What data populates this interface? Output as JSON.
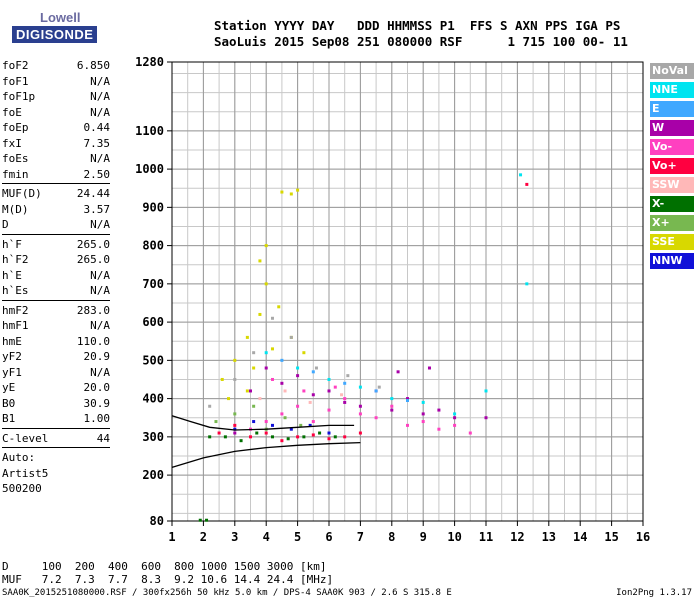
{
  "logo": {
    "line1": "Lowell",
    "line2": "DIGISONDE"
  },
  "header": {
    "line1": "Station YYYY DAY   DDD HHMMSS P1  FFS S AXN PPS IGA PS",
    "line2": "SaoLuis 2015 Sep08 251 080000 RSF      1 715 100 00- 11"
  },
  "params": [
    {
      "label": "foF2",
      "value": "6.850"
    },
    {
      "label": "foF1",
      "value": "N/A"
    },
    {
      "label": "foF1p",
      "value": "N/A"
    },
    {
      "label": "foE",
      "value": "N/A"
    },
    {
      "label": "foEp",
      "value": "0.44"
    },
    {
      "label": "fxI",
      "value": "7.35"
    },
    {
      "label": "foEs",
      "value": "N/A"
    },
    {
      "label": "fmin",
      "value": "2.50"
    },
    {
      "sep": true
    },
    {
      "label": "MUF(D)",
      "value": "24.44"
    },
    {
      "label": "M(D)",
      "value": "3.57"
    },
    {
      "label": "D",
      "value": "N/A"
    },
    {
      "sep": true
    },
    {
      "label": "h`F",
      "value": "265.0"
    },
    {
      "label": "h`F2",
      "value": "265.0"
    },
    {
      "label": "h`E",
      "value": "N/A"
    },
    {
      "label": "h`Es",
      "value": "N/A"
    },
    {
      "sep": true
    },
    {
      "label": "hmF2",
      "value": "283.0"
    },
    {
      "label": "hmF1",
      "value": "N/A"
    },
    {
      "label": "hmE",
      "value": "110.0"
    },
    {
      "label": "yF2",
      "value": "20.9"
    },
    {
      "label": "yF1",
      "value": "N/A"
    },
    {
      "label": "yE",
      "value": "20.0"
    },
    {
      "label": "B0",
      "value": "30.9"
    },
    {
      "label": "B1",
      "value": "1.00"
    },
    {
      "sep": true
    },
    {
      "label": "C-level",
      "value": "44"
    },
    {
      "sep": true
    },
    {
      "text": "Auto:"
    },
    {
      "text": "Artist5"
    },
    {
      "text": "500200"
    }
  ],
  "legend": [
    {
      "label": "NoVal",
      "color": "#a8a8a8"
    },
    {
      "label": "NNE",
      "color": "#00e4f0"
    },
    {
      "label": "E",
      "color": "#40a8ff"
    },
    {
      "label": "W",
      "color": "#a800a8"
    },
    {
      "label": "Vo-",
      "color": "#ff40c0"
    },
    {
      "label": "Vo+",
      "color": "#ff0040"
    },
    {
      "label": "SSW",
      "color": "#ffb8b8"
    },
    {
      "label": "X-",
      "color": "#007000"
    },
    {
      "label": "X+",
      "color": "#78b850"
    },
    {
      "label": "SSE",
      "color": "#d8d800"
    },
    {
      "label": "NNW",
      "color": "#1010d8"
    }
  ],
  "footer": {
    "line1": "D     100  200  400  600  800 1000 1500 3000 [km]",
    "line2": "MUF   7.2  7.3  7.7  8.3  9.2 10.6 14.4 24.4 [MHz]",
    "line3": "SAA0K_2015251080000.RSF / 300fx256h 50 kHz 5.0 km / DPS-4 SAA0K 903 / 2.6 S 315.8 E",
    "version": "Ion2Png 1.3.17"
  },
  "chart_data": {
    "type": "scatter",
    "x_ticks": [
      "1",
      "2",
      "3",
      "4",
      "5",
      "6",
      "7",
      "8",
      "9",
      "10",
      "11",
      "12",
      "13",
      "14",
      "15",
      "16"
    ],
    "y_ticks": [
      "80",
      "200",
      "300",
      "400",
      "500",
      "600",
      "700",
      "800",
      "900",
      "1000",
      "1100",
      "1280"
    ],
    "xlim": [
      1,
      16
    ],
    "ylim": [
      80,
      1280
    ],
    "grid": true,
    "legend_position": "right",
    "series": [
      {
        "name": "Vo-",
        "points": [
          [
            3.5,
            320
          ],
          [
            4.0,
            340
          ],
          [
            4.5,
            360
          ],
          [
            5.0,
            380
          ],
          [
            5.5,
            340
          ],
          [
            6.0,
            370
          ],
          [
            6.5,
            400
          ],
          [
            7.0,
            360
          ],
          [
            7.5,
            350
          ],
          [
            8.0,
            380
          ],
          [
            8.5,
            330
          ],
          [
            9.0,
            340
          ],
          [
            9.5,
            320
          ],
          [
            10.0,
            330
          ],
          [
            10.5,
            310
          ],
          [
            4.2,
            450
          ],
          [
            5.2,
            420
          ],
          [
            6.2,
            430
          ]
        ]
      },
      {
        "name": "W",
        "points": [
          [
            3.0,
            310
          ],
          [
            3.5,
            420
          ],
          [
            4.0,
            480
          ],
          [
            4.5,
            440
          ],
          [
            5.0,
            460
          ],
          [
            5.5,
            410
          ],
          [
            6.0,
            420
          ],
          [
            6.5,
            390
          ],
          [
            7.0,
            380
          ],
          [
            7.5,
            420
          ],
          [
            8.0,
            370
          ],
          [
            8.5,
            400
          ],
          [
            9.0,
            360
          ],
          [
            9.5,
            370
          ],
          [
            10.0,
            350
          ],
          [
            11.0,
            350
          ],
          [
            9.2,
            480
          ],
          [
            8.2,
            470
          ]
        ]
      },
      {
        "name": "Vo+",
        "points": [
          [
            2.5,
            310
          ],
          [
            3.0,
            330
          ],
          [
            3.5,
            300
          ],
          [
            4.0,
            310
          ],
          [
            4.5,
            290
          ],
          [
            5.0,
            300
          ],
          [
            5.5,
            305
          ],
          [
            6.0,
            295
          ],
          [
            6.5,
            300
          ],
          [
            7.0,
            310
          ],
          [
            12.3,
            960
          ]
        ]
      },
      {
        "name": "X-",
        "points": [
          [
            2.2,
            300
          ],
          [
            2.7,
            300
          ],
          [
            3.2,
            290
          ],
          [
            3.7,
            310
          ],
          [
            4.2,
            300
          ],
          [
            4.7,
            295
          ],
          [
            5.2,
            300
          ],
          [
            5.7,
            310
          ],
          [
            6.2,
            300
          ],
          [
            2.1,
            82
          ],
          [
            1.9,
            82
          ]
        ]
      },
      {
        "name": "X+",
        "points": [
          [
            2.4,
            340
          ],
          [
            3.0,
            360
          ],
          [
            3.6,
            380
          ],
          [
            4.0,
            320
          ],
          [
            4.6,
            350
          ],
          [
            5.1,
            330
          ]
        ]
      },
      {
        "name": "SSE",
        "points": [
          [
            2.6,
            450
          ],
          [
            3.0,
            500
          ],
          [
            3.4,
            560
          ],
          [
            3.8,
            620
          ],
          [
            4.0,
            700
          ],
          [
            4.4,
            640
          ],
          [
            4.8,
            560
          ],
          [
            5.2,
            520
          ],
          [
            3.6,
            480
          ],
          [
            4.2,
            530
          ],
          [
            4.5,
            940
          ],
          [
            4.8,
            935
          ],
          [
            5.0,
            945
          ],
          [
            4.0,
            800
          ],
          [
            3.8,
            760
          ],
          [
            2.8,
            400
          ],
          [
            3.4,
            420
          ]
        ]
      },
      {
        "name": "NNE",
        "points": [
          [
            4.0,
            520
          ],
          [
            5.0,
            480
          ],
          [
            6.0,
            450
          ],
          [
            7.0,
            430
          ],
          [
            8.0,
            400
          ],
          [
            9.0,
            390
          ],
          [
            10.0,
            360
          ],
          [
            11.0,
            420
          ],
          [
            12.1,
            985
          ],
          [
            12.3,
            700
          ]
        ]
      },
      {
        "name": "E",
        "points": [
          [
            4.5,
            500
          ],
          [
            5.5,
            470
          ],
          [
            6.5,
            440
          ],
          [
            7.5,
            420
          ],
          [
            8.5,
            395
          ]
        ]
      },
      {
        "name": "NNW",
        "points": [
          [
            3.0,
            320
          ],
          [
            3.6,
            340
          ],
          [
            4.2,
            330
          ],
          [
            4.8,
            320
          ],
          [
            5.4,
            330
          ],
          [
            6.0,
            310
          ]
        ]
      },
      {
        "name": "SSW",
        "points": [
          [
            3.8,
            400
          ],
          [
            4.6,
            420
          ],
          [
            5.4,
            390
          ],
          [
            6.4,
            410
          ]
        ]
      },
      {
        "name": "NoVal",
        "points": [
          [
            2.2,
            380
          ],
          [
            3.0,
            450
          ],
          [
            3.6,
            520
          ],
          [
            4.2,
            610
          ],
          [
            4.8,
            560
          ],
          [
            5.6,
            480
          ],
          [
            6.6,
            460
          ],
          [
            7.6,
            430
          ]
        ]
      }
    ],
    "traces": [
      {
        "points": [
          [
            1.0,
            220
          ],
          [
            2.0,
            245
          ],
          [
            3.0,
            262
          ],
          [
            4.0,
            272
          ],
          [
            5.0,
            278
          ],
          [
            6.0,
            282
          ],
          [
            7.0,
            285
          ]
        ]
      },
      {
        "points": [
          [
            1.0,
            355
          ],
          [
            1.6,
            340
          ],
          [
            2.2,
            325
          ],
          [
            3.0,
            318
          ],
          [
            4.0,
            320
          ],
          [
            5.0,
            325
          ],
          [
            6.0,
            330
          ],
          [
            6.8,
            330
          ]
        ]
      }
    ]
  }
}
